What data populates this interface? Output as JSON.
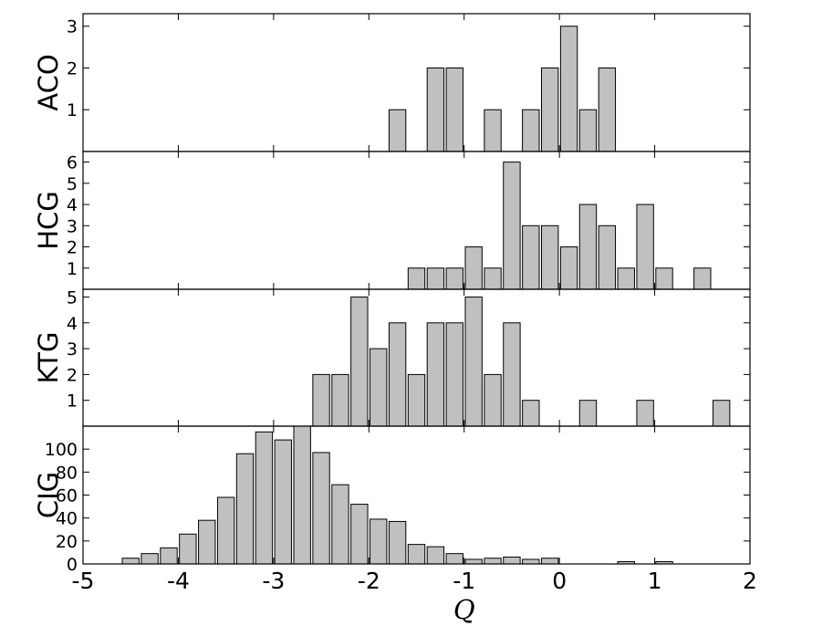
{
  "chart_data": [
    {
      "type": "bar",
      "ylabel": "ACO",
      "ylim": [
        0,
        3.3
      ],
      "yticks": [
        1,
        2,
        3
      ],
      "bin_width": 0.2,
      "bars": [
        {
          "x": -1.8,
          "y": 1
        },
        {
          "x": -1.4,
          "y": 2
        },
        {
          "x": -1.2,
          "y": 2
        },
        {
          "x": -0.8,
          "y": 1
        },
        {
          "x": -0.4,
          "y": 1
        },
        {
          "x": -0.2,
          "y": 2
        },
        {
          "x": 0.0,
          "y": 3
        },
        {
          "x": 0.2,
          "y": 1
        },
        {
          "x": 0.4,
          "y": 2
        }
      ]
    },
    {
      "type": "bar",
      "ylabel": "HCG",
      "ylim": [
        0,
        6.5
      ],
      "yticks": [
        1,
        2,
        3,
        4,
        5,
        6
      ],
      "bin_width": 0.2,
      "bars": [
        {
          "x": -1.6,
          "y": 1
        },
        {
          "x": -1.4,
          "y": 1
        },
        {
          "x": -1.2,
          "y": 1
        },
        {
          "x": -1.0,
          "y": 2
        },
        {
          "x": -0.8,
          "y": 1
        },
        {
          "x": -0.6,
          "y": 6
        },
        {
          "x": -0.4,
          "y": 3
        },
        {
          "x": -0.2,
          "y": 3
        },
        {
          "x": 0.0,
          "y": 2
        },
        {
          "x": 0.2,
          "y": 4
        },
        {
          "x": 0.4,
          "y": 3
        },
        {
          "x": 0.6,
          "y": 1
        },
        {
          "x": 0.8,
          "y": 4
        },
        {
          "x": 1.0,
          "y": 1
        },
        {
          "x": 1.4,
          "y": 1
        }
      ]
    },
    {
      "type": "bar",
      "ylabel": "KTG",
      "ylim": [
        0,
        5.3
      ],
      "yticks": [
        1,
        2,
        3,
        4,
        5
      ],
      "bin_width": 0.2,
      "bars": [
        {
          "x": -2.6,
          "y": 2
        },
        {
          "x": -2.4,
          "y": 2
        },
        {
          "x": -2.2,
          "y": 5
        },
        {
          "x": -2.0,
          "y": 3
        },
        {
          "x": -1.8,
          "y": 4
        },
        {
          "x": -1.6,
          "y": 2
        },
        {
          "x": -1.4,
          "y": 4
        },
        {
          "x": -1.2,
          "y": 4
        },
        {
          "x": -1.0,
          "y": 5
        },
        {
          "x": -0.8,
          "y": 2
        },
        {
          "x": -0.6,
          "y": 4
        },
        {
          "x": -0.4,
          "y": 1
        },
        {
          "x": 0.2,
          "y": 1
        },
        {
          "x": 0.8,
          "y": 1
        },
        {
          "x": 1.6,
          "y": 1
        }
      ]
    },
    {
      "type": "bar",
      "ylabel": "CIG",
      "ylim": [
        0,
        120
      ],
      "yticks": [
        0,
        20,
        40,
        60,
        80,
        100
      ],
      "bin_width": 0.2,
      "bars": [
        {
          "x": -4.6,
          "y": 5
        },
        {
          "x": -4.4,
          "y": 9
        },
        {
          "x": -4.2,
          "y": 14
        },
        {
          "x": -4.0,
          "y": 26
        },
        {
          "x": -3.8,
          "y": 38
        },
        {
          "x": -3.6,
          "y": 58
        },
        {
          "x": -3.4,
          "y": 96
        },
        {
          "x": -3.2,
          "y": 115
        },
        {
          "x": -3.0,
          "y": 108
        },
        {
          "x": -2.8,
          "y": 120
        },
        {
          "x": -2.6,
          "y": 97
        },
        {
          "x": -2.4,
          "y": 69
        },
        {
          "x": -2.2,
          "y": 52
        },
        {
          "x": -2.0,
          "y": 39
        },
        {
          "x": -1.8,
          "y": 37
        },
        {
          "x": -1.6,
          "y": 17
        },
        {
          "x": -1.4,
          "y": 15
        },
        {
          "x": -1.2,
          "y": 9
        },
        {
          "x": -1.0,
          "y": 4
        },
        {
          "x": -0.8,
          "y": 5
        },
        {
          "x": -0.6,
          "y": 6
        },
        {
          "x": -0.4,
          "y": 4
        },
        {
          "x": -0.2,
          "y": 5
        },
        {
          "x": 0.6,
          "y": 2
        },
        {
          "x": 1.0,
          "y": 2
        }
      ]
    }
  ],
  "xaxis": {
    "label": "Q",
    "xlim": [
      -5,
      2
    ],
    "ticks": [
      -5,
      -4,
      -3,
      -2,
      -1,
      0,
      1,
      2
    ],
    "tick_labels": [
      "-5",
      "-4",
      "-3",
      "-2",
      "-1",
      "0",
      "1",
      "2"
    ]
  },
  "colors": {
    "bar_fill": "#c0c0c0",
    "bar_edge": "#000000"
  }
}
